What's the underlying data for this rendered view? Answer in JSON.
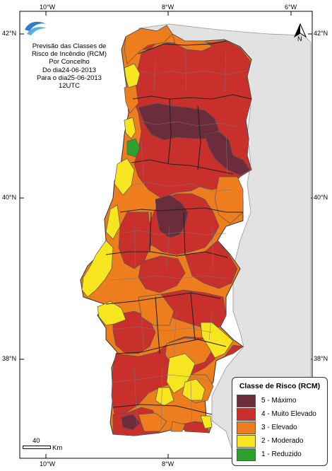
{
  "map": {
    "title_lines": [
      "Previsão das Classes de",
      "Risco de Incêndio (RCM)",
      "Por Concelho",
      "Do dia24-06-2013",
      "Para o dia25-06-2013",
      "12UTC"
    ],
    "north_label": "N",
    "ticks": {
      "top": [
        "10°W",
        "8°W",
        "6°W"
      ],
      "bottom": [
        "10°W",
        "8°W"
      ],
      "left": [
        "42°N",
        "40°N",
        "38°N"
      ],
      "right": [
        "42°N",
        "40°N",
        "38°N"
      ]
    },
    "scale": {
      "value": "40",
      "unit": "Km"
    },
    "logo_icon": "ipma-wave-logo-icon"
  },
  "legend": {
    "title": "Classe de Risco (RCM)",
    "items": [
      {
        "label": "5 - Máximo",
        "color": "#6b2c3c"
      },
      {
        "label": "4 - Muito Elevado",
        "color": "#c9302c"
      },
      {
        "label": "3 - Elevado",
        "color": "#ee7d1e"
      },
      {
        "label": "2 - Moderado",
        "color": "#f7e51f"
      },
      {
        "label": "1 - Reduzido",
        "color": "#2ea12e"
      }
    ]
  },
  "colors": {
    "sea": "#ffffff",
    "spain": "#e2e2e2",
    "border": "#555555"
  }
}
